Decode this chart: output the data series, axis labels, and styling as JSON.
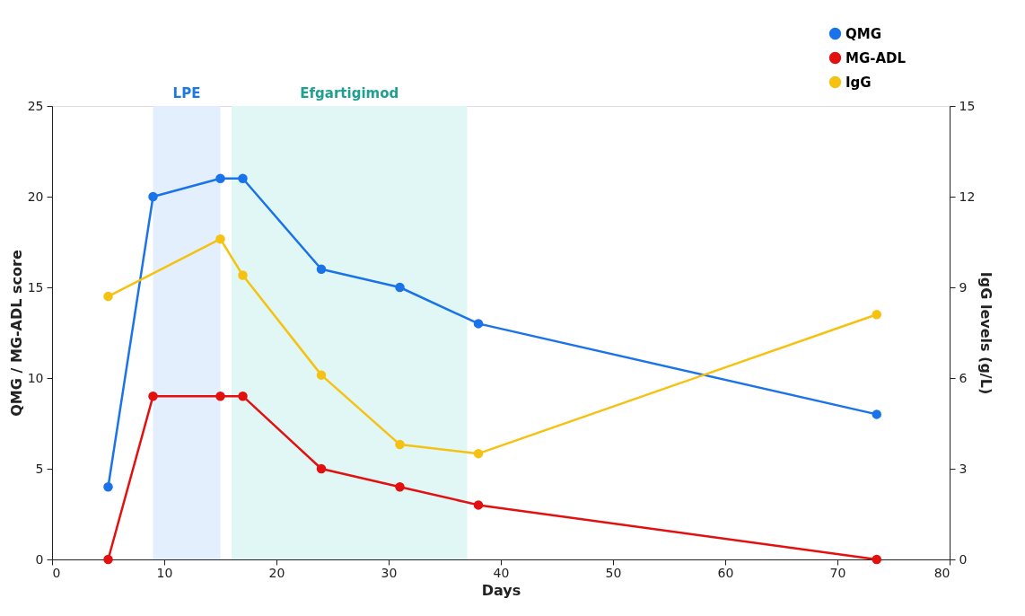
{
  "chart_data": {
    "type": "line",
    "xlabel": "Days",
    "ylabel": "QMG / MG-ADL score",
    "y2label": "IgG levels (g/L)",
    "xlim": [
      0,
      80
    ],
    "xticks": [
      0,
      10,
      20,
      30,
      40,
      50,
      60,
      70,
      80
    ],
    "ylim": [
      0,
      25
    ],
    "yticks": [
      0,
      5,
      10,
      15,
      20,
      25
    ],
    "y2lim": [
      0,
      15
    ],
    "y2ticks": [
      0,
      3,
      6,
      9,
      12,
      15
    ],
    "series": [
      {
        "name": "QMG",
        "color": "#1a73e8",
        "x": [
          5,
          9,
          15,
          17,
          24,
          31,
          38,
          73.5
        ],
        "values": [
          4,
          20,
          21,
          21,
          16,
          15,
          13,
          8
        ]
      },
      {
        "name": "MG-ADL",
        "color": "#e31010",
        "x": [
          5,
          9,
          15,
          17,
          24,
          31,
          38,
          73.5
        ],
        "values": [
          0,
          9,
          9,
          9,
          5,
          4,
          3,
          0
        ]
      },
      {
        "name": "IgG",
        "color": "#f5c211",
        "axis": "y2",
        "x": [
          5,
          15,
          17,
          24,
          31,
          38,
          73.5
        ],
        "values": [
          8.7,
          10.6,
          9.4,
          6.1,
          3.8,
          3.5,
          8.1
        ]
      }
    ],
    "bands": [
      {
        "axis": "x",
        "from": 9,
        "to": 15,
        "label": "LPE",
        "color": "#e3effc"
      },
      {
        "axis": "x",
        "from": 16,
        "to": 37,
        "label": "Efgartigimod",
        "color": "#e0f7f5"
      }
    ],
    "marker": "circle",
    "line_style": "solid",
    "grid": false,
    "legend": "top right"
  }
}
